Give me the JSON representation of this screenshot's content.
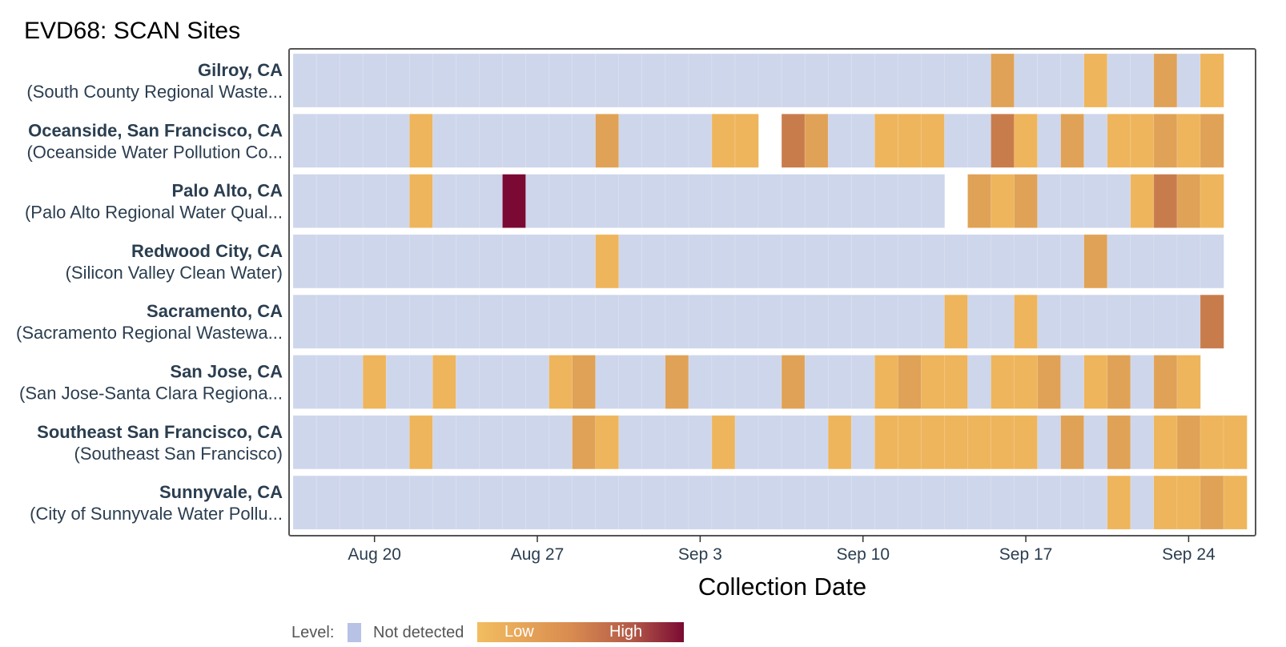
{
  "chart_data": {
    "type": "heatmap",
    "title": "EVD68: SCAN Sites",
    "xlabel": "Collection Date",
    "x_start": "Aug 17",
    "x_ticks": [
      "Aug 20",
      "Aug 27",
      "Sep 3",
      "Sep 10",
      "Sep 17",
      "Sep 24"
    ],
    "x_tick_day_index": [
      3,
      10,
      17,
      24,
      31,
      38
    ],
    "x_range_days": [
      0,
      41
    ],
    "level_codes": {
      "N": "Not detected",
      "1": "Low",
      "2": "Low-Mid",
      "3": "Mid",
      "4": "High",
      "-": "No sample"
    },
    "colors": {
      "N": "#ced6ec",
      "1": "#eeb55c",
      "2": "#e0a256",
      "3": "#c97c4b",
      "4": "#7a0a33",
      "frame": "#555555"
    },
    "rows": [
      {
        "name": "Gilroy, CA",
        "plant": "(South County Regional Waste...",
        "levels": [
          "N",
          "N",
          "N",
          "N",
          "N",
          "N",
          "N",
          "N",
          "N",
          "N",
          "N",
          "N",
          "N",
          "N",
          "N",
          "N",
          "N",
          "N",
          "N",
          "N",
          "N",
          "N",
          "N",
          "N",
          "N",
          "N",
          "N",
          "N",
          "N",
          "N",
          "2",
          "N",
          "N",
          "N",
          "1",
          "N",
          "N",
          "2",
          "N",
          "1",
          "-"
        ]
      },
      {
        "name": "Oceanside, San Francisco, CA",
        "plant": "(Oceanside Water Pollution Co...",
        "levels": [
          "N",
          "N",
          "N",
          "N",
          "N",
          "1",
          "N",
          "N",
          "N",
          "N",
          "N",
          "N",
          "N",
          "2",
          "N",
          "N",
          "N",
          "N",
          "1",
          "1",
          "-",
          "3",
          "2",
          "N",
          "N",
          "1",
          "1",
          "1",
          "N",
          "N",
          "3",
          "1",
          "N",
          "2",
          "N",
          "1",
          "1",
          "2",
          "1",
          "2",
          "-"
        ]
      },
      {
        "name": "Palo Alto, CA",
        "plant": "(Palo Alto Regional Water Qual...",
        "levels": [
          "N",
          "N",
          "N",
          "N",
          "N",
          "1",
          "N",
          "N",
          "N",
          "4",
          "N",
          "N",
          "N",
          "N",
          "N",
          "N",
          "N",
          "N",
          "N",
          "N",
          "N",
          "N",
          "N",
          "N",
          "N",
          "N",
          "N",
          "N",
          "-",
          "2",
          "1",
          "2",
          "N",
          "N",
          "N",
          "N",
          "1",
          "3",
          "2",
          "1",
          "-"
        ]
      },
      {
        "name": "Redwood City, CA",
        "plant": "(Silicon Valley Clean Water)",
        "levels": [
          "N",
          "N",
          "N",
          "N",
          "N",
          "N",
          "N",
          "N",
          "N",
          "N",
          "N",
          "N",
          "N",
          "1",
          "N",
          "N",
          "N",
          "N",
          "N",
          "N",
          "N",
          "N",
          "N",
          "N",
          "N",
          "N",
          "N",
          "N",
          "N",
          "N",
          "N",
          "N",
          "N",
          "N",
          "2",
          "N",
          "N",
          "N",
          "N",
          "N",
          "-"
        ]
      },
      {
        "name": "Sacramento, CA",
        "plant": "(Sacramento Regional Wastewa...",
        "levels": [
          "N",
          "N",
          "N",
          "N",
          "N",
          "N",
          "N",
          "N",
          "N",
          "N",
          "N",
          "N",
          "N",
          "N",
          "N",
          "N",
          "N",
          "N",
          "N",
          "N",
          "N",
          "N",
          "N",
          "N",
          "N",
          "N",
          "N",
          "N",
          "1",
          "N",
          "N",
          "1",
          "N",
          "N",
          "N",
          "N",
          "N",
          "N",
          "N",
          "3",
          "-"
        ]
      },
      {
        "name": "San Jose, CA",
        "plant": "(San Jose-Santa Clara Regiona...",
        "levels": [
          "N",
          "N",
          "N",
          "1",
          "N",
          "N",
          "1",
          "N",
          "N",
          "N",
          "N",
          "1",
          "2",
          "N",
          "N",
          "N",
          "2",
          "N",
          "N",
          "N",
          "N",
          "2",
          "N",
          "N",
          "N",
          "1",
          "2",
          "1",
          "1",
          "N",
          "1",
          "1",
          "2",
          "N",
          "1",
          "2",
          "N",
          "2",
          "1",
          "-",
          "-"
        ]
      },
      {
        "name": "Southeast San Francisco, CA",
        "plant": "(Southeast San Francisco)",
        "levels": [
          "N",
          "N",
          "N",
          "N",
          "N",
          "1",
          "N",
          "N",
          "N",
          "N",
          "N",
          "N",
          "2",
          "1",
          "N",
          "N",
          "N",
          "N",
          "1",
          "N",
          "N",
          "N",
          "N",
          "1",
          "N",
          "1",
          "1",
          "1",
          "1",
          "1",
          "1",
          "1",
          "N",
          "2",
          "N",
          "2",
          "N",
          "1",
          "2",
          "1",
          "1"
        ]
      },
      {
        "name": "Sunnyvale, CA",
        "plant": "(City of Sunnyvale Water Pollu...",
        "levels": [
          "N",
          "N",
          "N",
          "N",
          "N",
          "N",
          "N",
          "N",
          "N",
          "N",
          "N",
          "N",
          "N",
          "N",
          "N",
          "N",
          "N",
          "N",
          "N",
          "N",
          "N",
          "N",
          "N",
          "N",
          "N",
          "N",
          "N",
          "N",
          "N",
          "N",
          "N",
          "N",
          "N",
          "N",
          "N",
          "1",
          "N",
          "1",
          "1",
          "2",
          "1"
        ]
      }
    ],
    "legend": {
      "prefix": "Level:",
      "not_detected": "Not detected",
      "low": "Low",
      "high": "High"
    }
  }
}
